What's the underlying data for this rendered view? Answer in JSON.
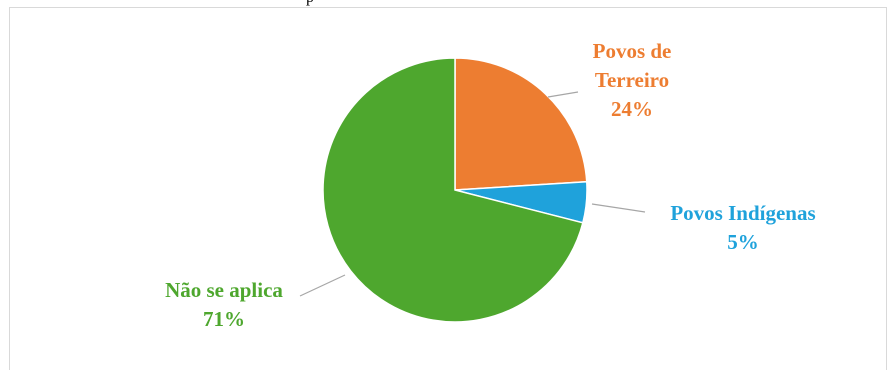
{
  "clipped_text": "p",
  "chart_data": {
    "type": "pie",
    "title": "",
    "slices": [
      {
        "label": "Povos de Terreiro",
        "label_lines": [
          "Povos de",
          "Terreiro"
        ],
        "value": 24,
        "value_label": "24%",
        "color": "#ED7D31"
      },
      {
        "label": "Povos Indígenas",
        "label_lines": [
          "Povos Indígenas"
        ],
        "value": 5,
        "value_label": "5%",
        "color": "#1FA2DB"
      },
      {
        "label": "Não se aplica",
        "label_lines": [
          "Não se aplica"
        ],
        "value": 71,
        "value_label": "71%",
        "color": "#4EA72E"
      }
    ],
    "legend": "none",
    "start_angle": "12 o'clock, clockwise"
  }
}
